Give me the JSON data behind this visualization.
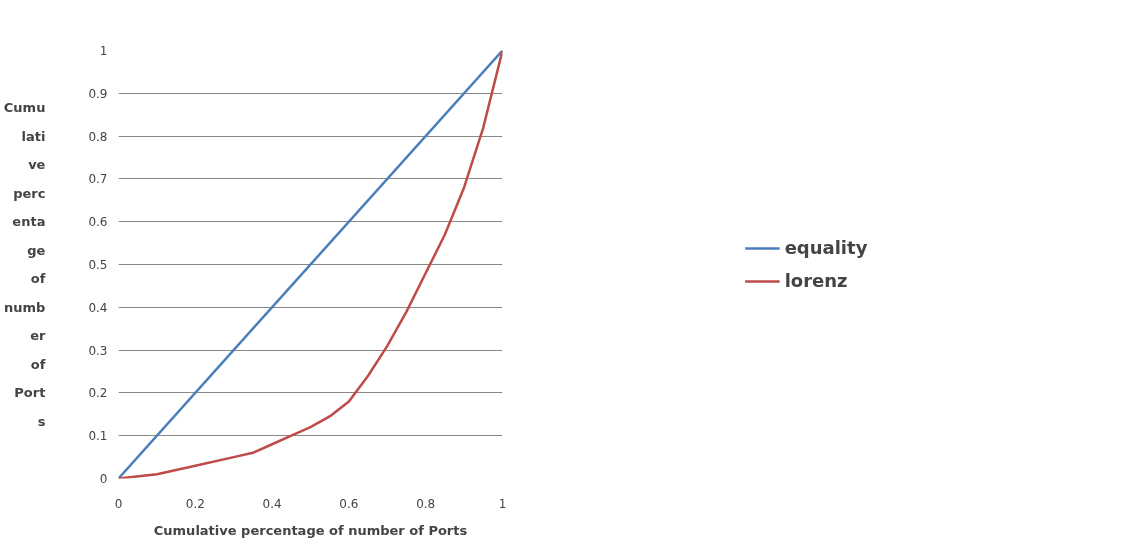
{
  "chart_data": {
    "type": "line",
    "xlabel": "Cumulative percentage of number of Ports",
    "ylabel": "Cumulative percentage of number of Ports",
    "x": [
      0,
      0.1,
      0.2,
      0.3,
      0.35,
      0.4,
      0.45,
      0.5,
      0.55,
      0.6,
      0.65,
      0.7,
      0.75,
      0.8,
      0.85,
      0.9,
      0.95,
      1
    ],
    "series": [
      {
        "name": "equality",
        "color": "#4a7ebb",
        "x": [
          0,
          1
        ],
        "values": [
          0,
          1
        ]
      },
      {
        "name": "lorenz",
        "color": "#be4b48",
        "values": [
          0,
          0.01,
          0.03,
          0.05,
          0.06,
          0.08,
          0.1,
          0.12,
          0.145,
          0.18,
          0.24,
          0.31,
          0.39,
          0.48,
          0.57,
          0.68,
          0.82,
          1
        ]
      }
    ],
    "xlim": [
      0,
      1
    ],
    "xticks": [
      0,
      0.2,
      0.4,
      0.6,
      0.8,
      1
    ],
    "ylim": [
      0,
      1
    ],
    "yticks": [
      0,
      0.1,
      0.2,
      0.3,
      0.4,
      0.5,
      0.6,
      0.7,
      0.8,
      0.9,
      1
    ],
    "grid": "y",
    "legend": "right",
    "marker": "none",
    "line_style": "solid"
  }
}
